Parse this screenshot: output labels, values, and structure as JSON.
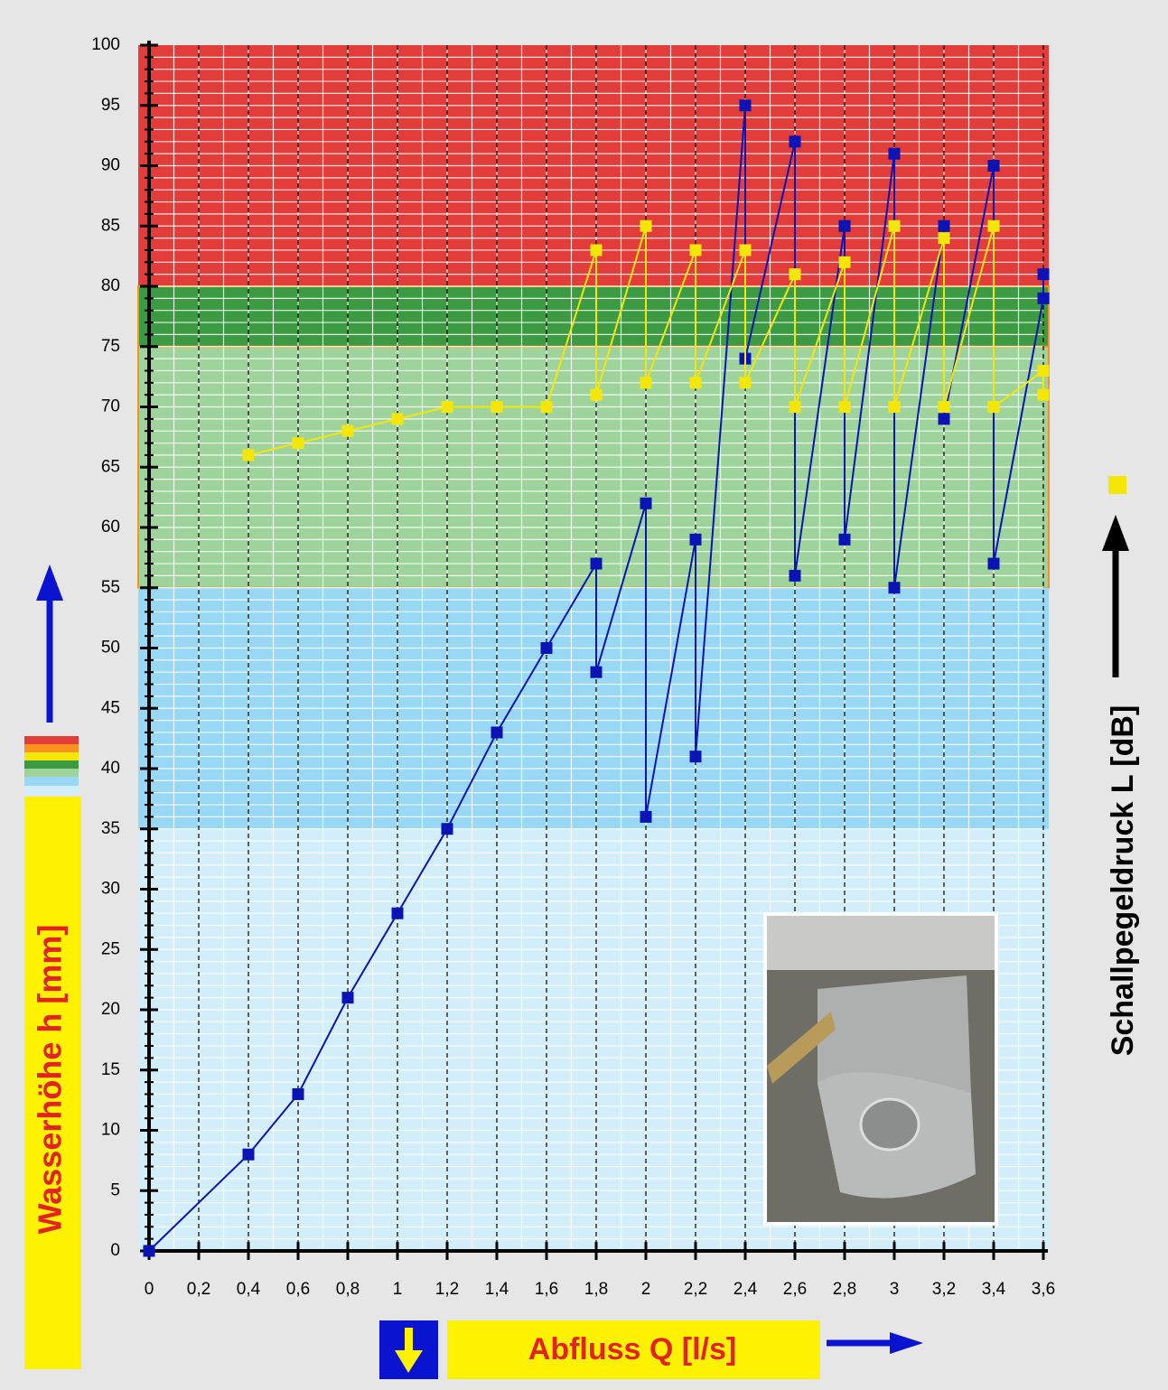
{
  "chart_data": {
    "type": "line",
    "x_label": "Abfluss Q [l/s]",
    "y_label": "Wasserhöhe h [mm]",
    "y2_label": "Schallpegeldruck L [dB]",
    "xlim": [
      0,
      3.6
    ],
    "ylim": [
      0,
      100
    ],
    "xticks": [
      0,
      {
        "value": 0.2,
        "label": "0,2"
      },
      {
        "value": 0.4,
        "label": "0,4"
      },
      {
        "value": 0.6,
        "label": "0,6"
      },
      {
        "value": 0.8,
        "label": "0,8"
      },
      1,
      {
        "value": 1.2,
        "label": "1,2"
      },
      {
        "value": 1.4,
        "label": "1,4"
      },
      {
        "value": 1.6,
        "label": "1,6"
      },
      {
        "value": 1.8,
        "label": "1,8"
      },
      2,
      {
        "value": 2.2,
        "label": "2,2"
      },
      {
        "value": 2.4,
        "label": "2,4"
      },
      {
        "value": 2.6,
        "label": "2,6"
      },
      {
        "value": 2.8,
        "label": "2,8"
      },
      3,
      {
        "value": 3.2,
        "label": "3,2"
      },
      {
        "value": 3.4,
        "label": "3,4"
      },
      {
        "value": 3.6,
        "label": "3,6"
      }
    ],
    "yticks": [
      0,
      5,
      10,
      15,
      20,
      25,
      30,
      35,
      40,
      45,
      50,
      55,
      60,
      65,
      70,
      75,
      80,
      85,
      90,
      95,
      100
    ],
    "bands": [
      {
        "from": 75,
        "to": 100,
        "color": "#e23d3a"
      },
      {
        "from": 75,
        "to": 80,
        "color": "#3c9a43"
      },
      {
        "from": 55,
        "to": 75,
        "color": "#9ed49c"
      },
      {
        "from": 35,
        "to": 55,
        "color": "#98d8f4"
      },
      {
        "from": 0,
        "to": 35,
        "color": "#d2eefa"
      }
    ],
    "series": [
      {
        "color": "#0a14b4",
        "x": [
          0,
          0.4,
          0.6,
          0.8,
          1,
          1.2,
          1.4,
          1.6,
          1.8,
          1.8,
          2,
          2,
          2.2,
          2.2,
          2.4,
          2.4,
          2.6,
          2.6,
          2.8,
          2.8,
          3,
          3,
          3.2,
          3.2,
          3.4,
          3.4,
          3.6,
          3.6
        ],
        "values": [
          0,
          8,
          13,
          21,
          28,
          35,
          43,
          50,
          57,
          48,
          62,
          36,
          59,
          41,
          95,
          74,
          92,
          56,
          85,
          59,
          91,
          55,
          85,
          69,
          90,
          57,
          79,
          81
        ]
      },
      {
        "color": "#f5e60a",
        "x": [
          0.4,
          0.6,
          0.8,
          1,
          1.2,
          1.4,
          1.6,
          1.8,
          1.8,
          2,
          2,
          2.2,
          2.2,
          2.4,
          2.4,
          2.6,
          2.6,
          2.8,
          2.8,
          3,
          3,
          3.2,
          3.2,
          3.4,
          3.4,
          3.6,
          3.6
        ],
        "values": [
          66,
          67,
          68,
          69,
          70,
          70,
          70,
          83,
          71,
          85,
          72,
          83,
          72,
          83,
          72,
          81,
          70,
          82,
          70,
          85,
          70,
          84,
          70,
          85,
          70,
          73,
          71
        ]
      }
    ]
  }
}
